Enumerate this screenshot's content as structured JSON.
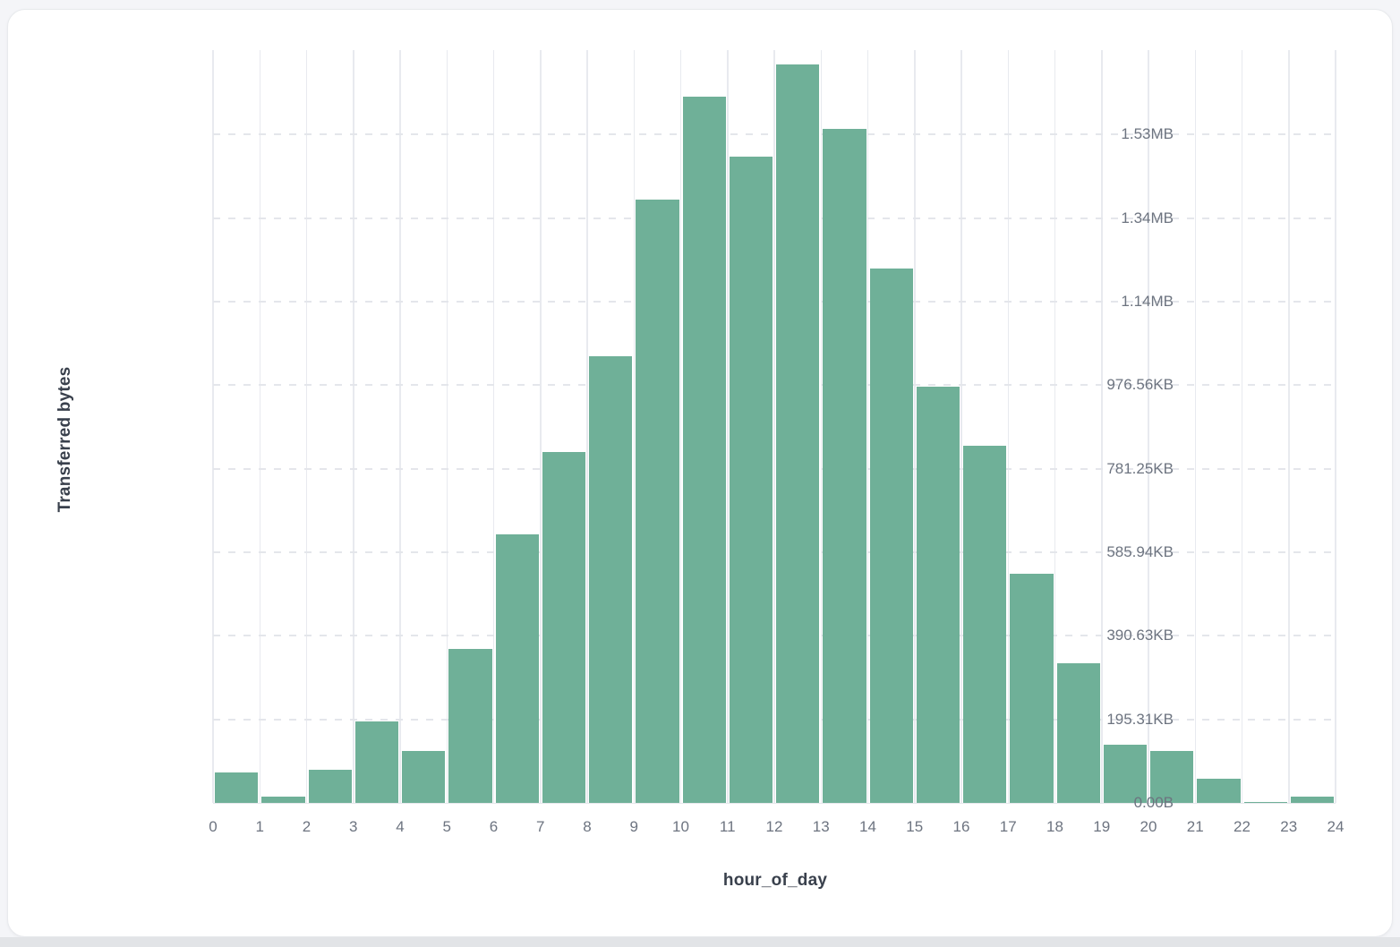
{
  "chart_data": {
    "type": "bar",
    "subtype": "histogram",
    "title": "",
    "xlabel": "hour_of_day",
    "ylabel": "Transferred bytes",
    "bar_color": "#6FB098",
    "grid": true,
    "legend": "none",
    "x_ticks": [
      "0",
      "1",
      "2",
      "3",
      "4",
      "5",
      "6",
      "7",
      "8",
      "9",
      "10",
      "11",
      "12",
      "13",
      "14",
      "15",
      "16",
      "17",
      "18",
      "19",
      "20",
      "21",
      "22",
      "23",
      "24"
    ],
    "y_ticks": [
      {
        "label": "0.00B",
        "bytes": 0
      },
      {
        "label": "195.31KB",
        "bytes": 200000
      },
      {
        "label": "390.63KB",
        "bytes": 400000
      },
      {
        "label": "585.94KB",
        "bytes": 600000
      },
      {
        "label": "781.25KB",
        "bytes": 800000
      },
      {
        "label": "976.56KB",
        "bytes": 1000000
      },
      {
        "label": "1.14MB",
        "bytes": 1200000
      },
      {
        "label": "1.34MB",
        "bytes": 1400000
      },
      {
        "label": "1.53MB",
        "bytes": 1600000
      }
    ],
    "y_domain_max_bytes": 1802000,
    "categories": [
      0,
      1,
      2,
      3,
      4,
      5,
      6,
      7,
      8,
      9,
      10,
      11,
      12,
      13,
      14,
      15,
      16,
      17,
      18,
      19,
      20,
      21,
      22,
      23
    ],
    "values_bytes": [
      72000,
      16000,
      79000,
      194000,
      125000,
      368000,
      643000,
      839000,
      1069000,
      1444000,
      1691000,
      1546000,
      1767000,
      1614000,
      1280000,
      996000,
      856000,
      548000,
      334000,
      139000,
      124000,
      57000,
      3000,
      14000
    ]
  }
}
